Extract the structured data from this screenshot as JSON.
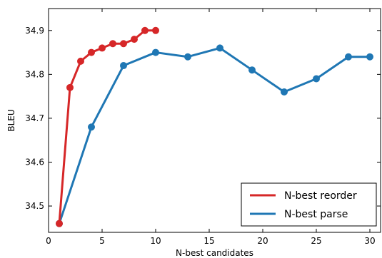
{
  "chart_data": {
    "type": "line",
    "title": "",
    "xlabel": "N-best candidates",
    "ylabel": "BLEU",
    "xlim": [
      0,
      31
    ],
    "ylim": [
      34.44,
      34.95
    ],
    "xticks": [
      0,
      5,
      10,
      15,
      20,
      25,
      30
    ],
    "yticks": [
      34.5,
      34.6,
      34.7,
      34.8,
      34.9
    ],
    "ytick_labels": [
      "34.5",
      "34.6",
      "34.7",
      "34.8",
      "34.9"
    ],
    "grid": false,
    "legend_position": "bottom-right",
    "series": [
      {
        "name": "N-best reorder",
        "color": "#d62728",
        "x": [
          1,
          2,
          3,
          4,
          5,
          6,
          7,
          8,
          9,
          10
        ],
        "y": [
          34.46,
          34.77,
          34.83,
          34.85,
          34.86,
          34.87,
          34.87,
          34.88,
          34.9,
          34.9
        ]
      },
      {
        "name": "N-best parse",
        "color": "#1f77b4",
        "x": [
          1,
          4,
          7,
          10,
          13,
          16,
          19,
          22,
          25,
          28,
          30
        ],
        "y": [
          34.46,
          34.68,
          34.82,
          34.85,
          34.84,
          34.86,
          34.81,
          34.76,
          34.79,
          34.84,
          34.84
        ]
      }
    ]
  }
}
